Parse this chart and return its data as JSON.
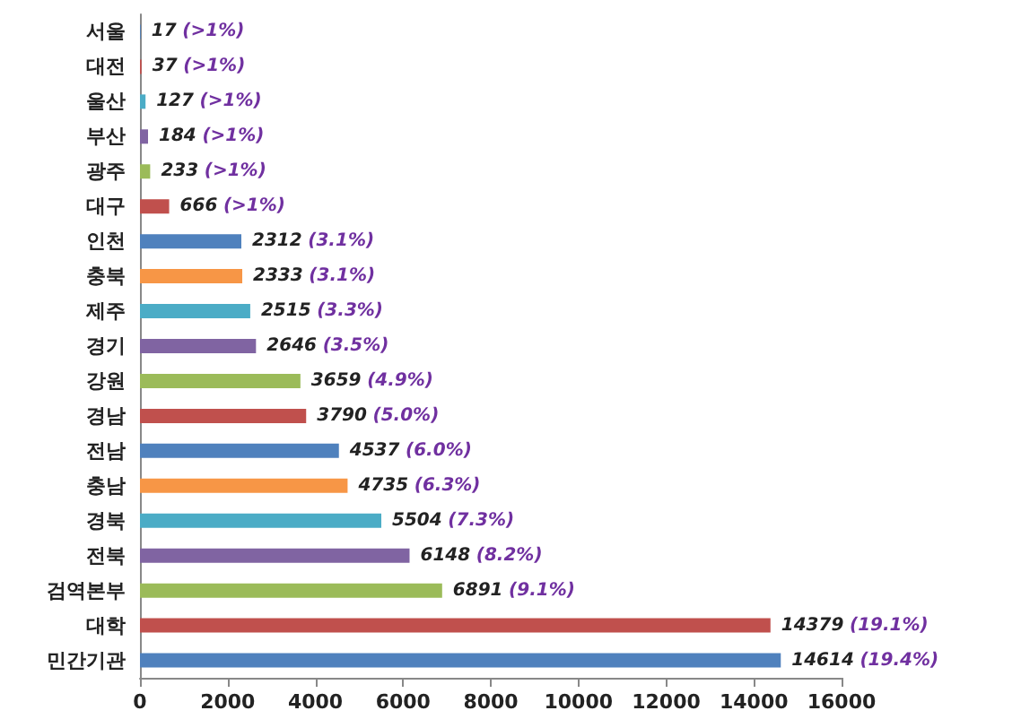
{
  "chart_data": {
    "type": "bar",
    "orientation": "horizontal",
    "categories": [
      "서울",
      "대전",
      "울산",
      "부산",
      "광주",
      "대구",
      "인천",
      "충북",
      "제주",
      "경기",
      "강원",
      "경남",
      "전남",
      "충남",
      "경북",
      "전북",
      "검역본부",
      "대학",
      "민간기관"
    ],
    "values": [
      17,
      37,
      127,
      184,
      233,
      666,
      2312,
      2333,
      2515,
      2646,
      3659,
      3790,
      4537,
      4735,
      5504,
      6148,
      6891,
      14379,
      14614
    ],
    "colors": [
      "#4f81bd",
      "#c0504d",
      "#4bacc6",
      "#8064a2",
      "#9bbb59",
      "#c0504d",
      "#4f81bd",
      "#f79646",
      "#4bacc6",
      "#8064a2",
      "#9bbb59",
      "#c0504d",
      "#4f81bd",
      "#f79646",
      "#4bacc6",
      "#8064a2",
      "#9bbb59",
      "#c0504d",
      "#4f81bd"
    ],
    "value_labels": [
      "17 (>1%)",
      "37 (>1%)",
      "127 (>1%)",
      "184 (>1%)",
      "233 (>1%)",
      "666 (>1%)",
      "2312 (3.1%)",
      "2333 (3.1%)",
      "2515 (3.3%)",
      "2646 (3.5%)",
      "3659 (4.9%)",
      "3790 (5.0%)",
      "4537 (6.0%)",
      "4735 (6.3%)",
      "5504 (7.3%)",
      "6148 (8.2%)",
      "6891 (9.1%)",
      "14379 (19.1%)",
      "14614 (19.4%)"
    ],
    "xlim": [
      0,
      16000
    ],
    "xticks": [
      0,
      2000,
      4000,
      6000,
      8000,
      10000,
      12000,
      14000,
      16000
    ],
    "grid": false
  }
}
